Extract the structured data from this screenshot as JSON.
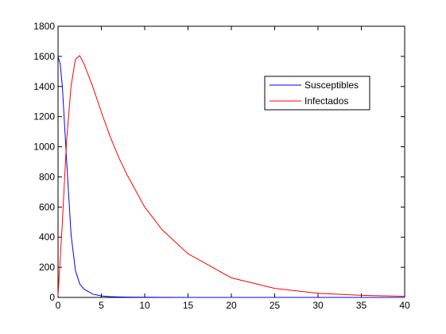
{
  "chart_data": {
    "type": "line",
    "x": [
      0,
      0.25,
      0.5,
      0.75,
      1,
      1.5,
      2,
      2.5,
      3,
      4,
      5,
      6,
      7,
      8,
      10,
      12,
      15,
      20,
      25,
      30,
      35,
      40
    ],
    "series": [
      {
        "name": "Susceptibles",
        "color": "#0000ff",
        "values": [
          1600,
          1550,
          1400,
          1150,
          900,
          420,
          180,
          90,
          55,
          22,
          10,
          5,
          3,
          2,
          1,
          0.5,
          0,
          0,
          0,
          0,
          0,
          0
        ]
      },
      {
        "name": "Infectados",
        "color": "#ff0000",
        "values": [
          10,
          250,
          500,
          780,
          1050,
          1400,
          1580,
          1605,
          1550,
          1400,
          1230,
          1070,
          930,
          810,
          600,
          450,
          290,
          130,
          60,
          28,
          14,
          7
        ]
      }
    ],
    "xlim": [
      0,
      40
    ],
    "xticks": [
      0,
      5,
      10,
      15,
      20,
      25,
      30,
      35,
      40
    ],
    "ylim": [
      0,
      1800
    ],
    "yticks": [
      0,
      200,
      400,
      600,
      800,
      1000,
      1200,
      1400,
      1600,
      1800
    ],
    "legend": "upper right"
  }
}
